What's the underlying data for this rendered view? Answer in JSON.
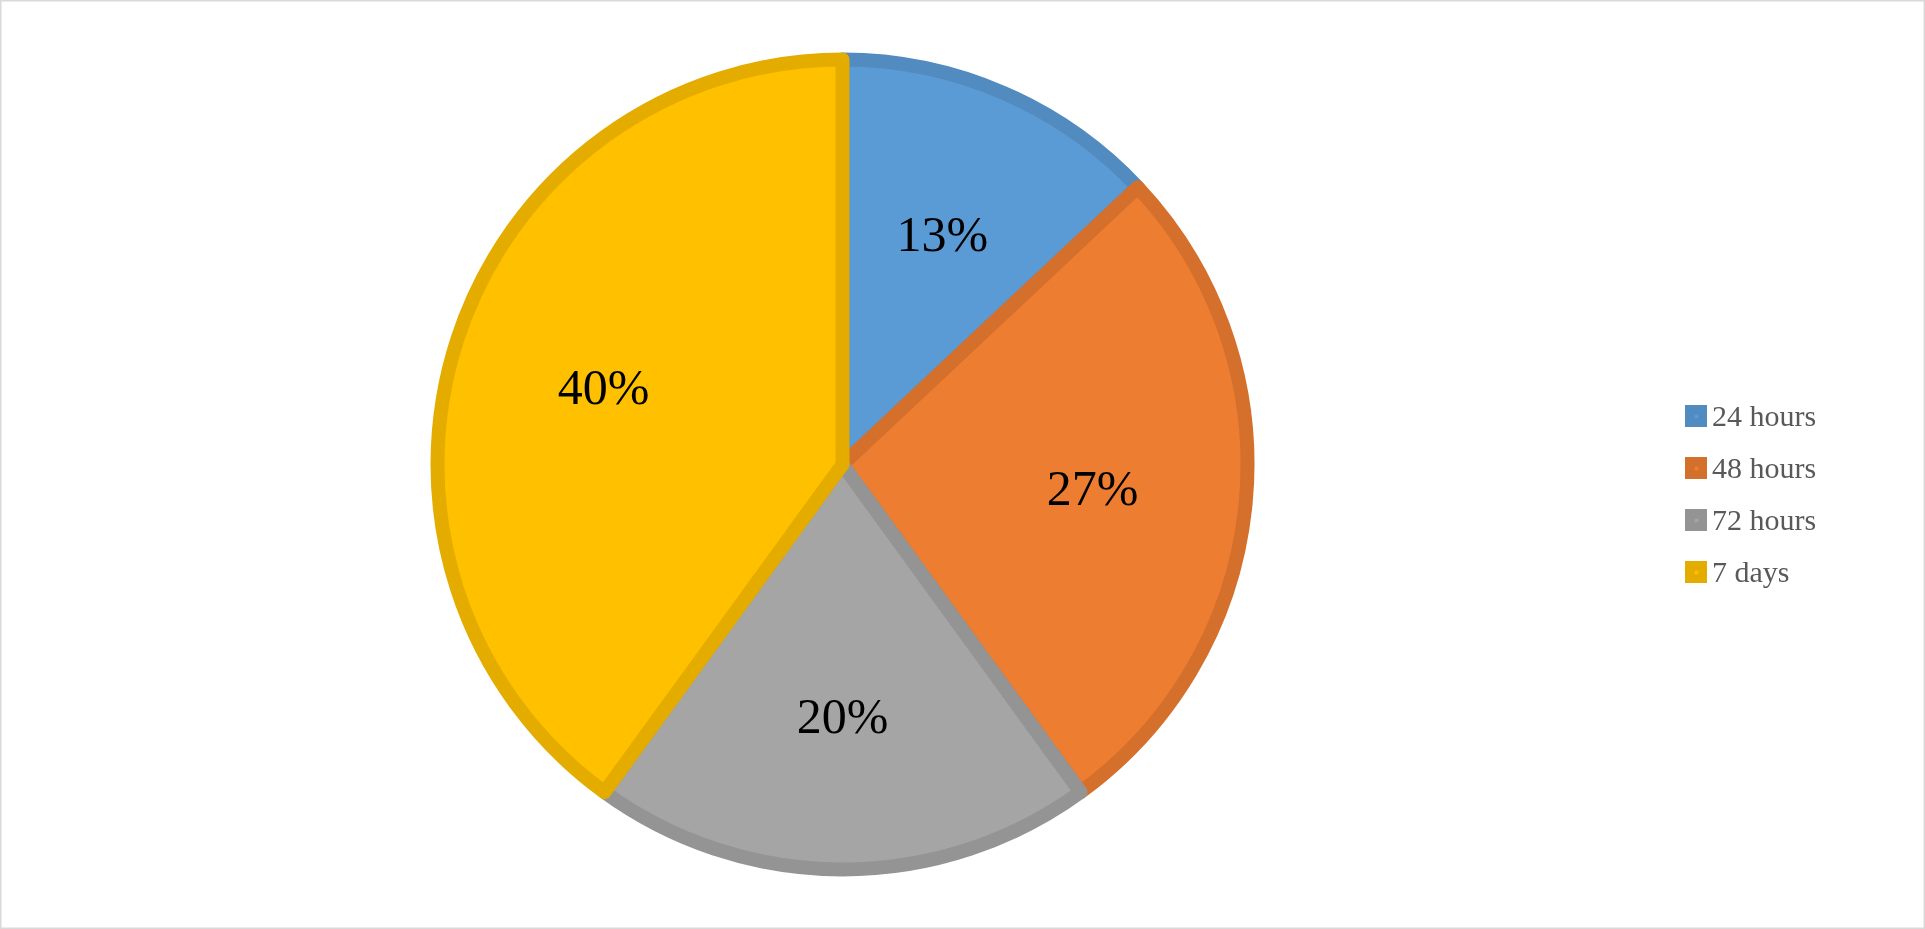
{
  "chart_data": {
    "type": "pie",
    "categories": [
      "24 hours",
      "48 hours",
      "72 hours",
      "7 days"
    ],
    "values": [
      13,
      27,
      20,
      40
    ],
    "colors": [
      "#5b9bd5",
      "#ed7d31",
      "#a5a5a5",
      "#ffc000"
    ],
    "value_labels": [
      "13%",
      "27%",
      "20%",
      "40%"
    ],
    "legend": "right"
  }
}
